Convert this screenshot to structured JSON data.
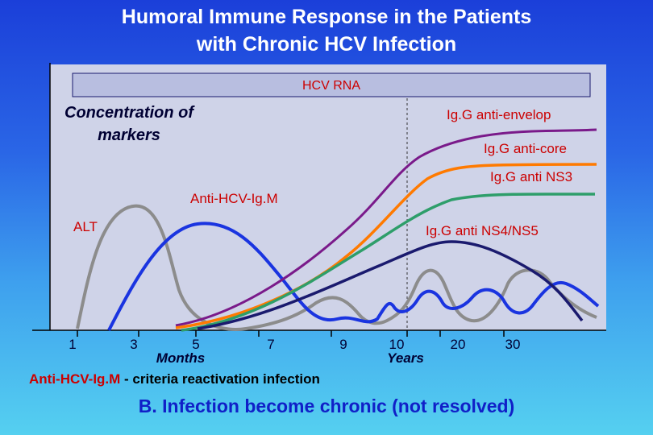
{
  "title": {
    "line1": "Humoral Immune Response in the Patients",
    "line2": "with Chronic HCV Infection"
  },
  "hcv_rna_label": "HCV RNA",
  "y_axis_label": {
    "line1": "Concentration of",
    "line2": "markers"
  },
  "curve_labels": {
    "igg_anti_envelop": "Ig.G anti-envelop",
    "igg_anti_core": "Ig.G anti-core",
    "igg_anti_ns3": "Ig.G anti NS3",
    "anti_hcv_igm": "Anti-HCV-Ig.M",
    "alt": "ALT",
    "igg_anti_ns4_ns5": "Ig.G anti NS4/NS5"
  },
  "x_axis": {
    "ticks": [
      "1",
      "3",
      "5",
      "7",
      "9",
      "10",
      "20",
      "30"
    ],
    "months_label": "Months",
    "years_label": "Years"
  },
  "colors": {
    "igg_anti_envelop": "#7a1a8a",
    "igg_anti_core": "#ff7a00",
    "igg_anti_ns3": "#2e9e6a",
    "anti_hcv_igm": "#1a34e0",
    "alt": "#8c8c8c",
    "igg_anti_ns4_ns5": "#1a1a6e"
  },
  "footer": {
    "marker": "Anti-HCV-Ig.M",
    "text": " - criteria reactivation infection"
  },
  "conclusion": "B. Infection become chronic (not resolved)"
}
